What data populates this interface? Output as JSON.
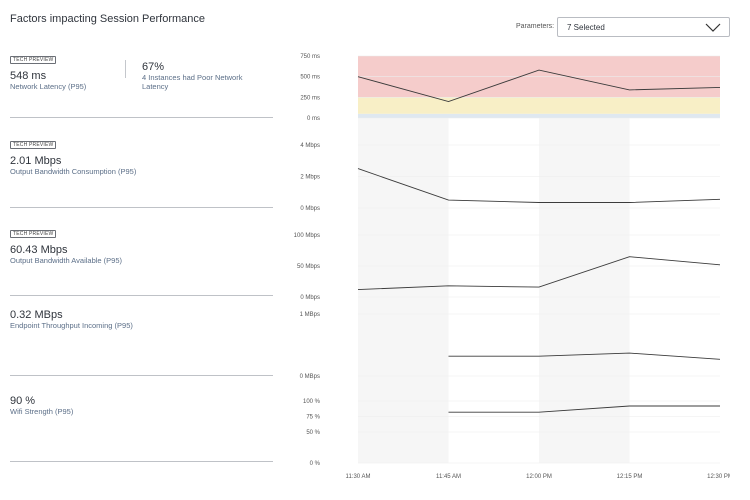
{
  "page": {
    "title": "Factors impacting Session Performance"
  },
  "parameters": {
    "label": "Parameters:",
    "selected": "7 Selected"
  },
  "metrics": [
    {
      "badge": "TECH PREVIEW",
      "value": "548 ms",
      "label": "Network Latency (P95)",
      "secondary": {
        "value": "67%",
        "label": "4 Instances had Poor Network Latency"
      }
    },
    {
      "badge": "TECH PREVIEW",
      "value": "2.01 Mbps",
      "label": "Output Bandwidth Consumption (P95)"
    },
    {
      "badge": "TECH PREVIEW",
      "value": "60.43 Mbps",
      "label": "Output Bandwidth Available (P95)"
    },
    {
      "value": "0.32 MBps",
      "label": "Endpoint Throughput Incoming (P95)"
    },
    {
      "value": "90 %",
      "label": "Wifi Strength (P95)"
    }
  ],
  "chart_data": {
    "type": "line",
    "x": [
      "11:30 AM",
      "11:45 AM",
      "12:00 PM",
      "12:15 PM",
      "12:30 PM"
    ],
    "x_values": [
      0,
      1,
      2,
      3,
      4
    ],
    "panels": [
      {
        "name": "latency",
        "ticks": [
          "750 ms",
          "500 ms",
          "250 ms",
          "0 ms"
        ],
        "tick_values": [
          750,
          500,
          250,
          0
        ],
        "ylim": [
          0,
          750
        ],
        "bands": [
          {
            "from": 250,
            "to": 750,
            "color": "#f5cccb"
          },
          {
            "from": 50,
            "to": 250,
            "color": "#f8efc6"
          },
          {
            "from": 0,
            "to": 50,
            "color": "#dfe8f0"
          }
        ],
        "x": [
          0,
          1,
          2,
          3,
          4
        ],
        "values": [
          500,
          200,
          580,
          340,
          370
        ]
      },
      {
        "name": "output-bandwidth",
        "ticks": [
          "4 Mbps",
          "2 Mbps",
          "0 Mbps"
        ],
        "tick_values": [
          4,
          2,
          0
        ],
        "ylim": [
          0,
          4
        ],
        "x": [
          0,
          1,
          2,
          3,
          4
        ],
        "values": [
          2.5,
          0.5,
          0.35,
          0.35,
          0.55
        ]
      },
      {
        "name": "available-bandwidth",
        "ticks": [
          "100 Mbps",
          "50 Mbps",
          "0 Mbps"
        ],
        "tick_values": [
          100,
          50,
          0
        ],
        "ylim": [
          0,
          100
        ],
        "x": [
          0,
          1,
          2,
          3,
          4
        ],
        "values": [
          12,
          18,
          16,
          65,
          52
        ]
      },
      {
        "name": "throughput",
        "ticks": [
          "1 MBps",
          "0 MBps"
        ],
        "tick_values": [
          1,
          0
        ],
        "ylim": [
          0,
          1
        ],
        "x": [
          1,
          2,
          3,
          4
        ],
        "values": [
          0.32,
          0.32,
          0.37,
          0.27
        ]
      },
      {
        "name": "wifi",
        "ticks": [
          "100 %",
          "75 %",
          "50 %",
          "0 %"
        ],
        "tick_values": [
          100,
          75,
          50,
          0
        ],
        "ylim": [
          0,
          100
        ],
        "x": [
          1,
          2,
          3,
          4
        ],
        "values": [
          82,
          82,
          92,
          92
        ]
      }
    ]
  }
}
